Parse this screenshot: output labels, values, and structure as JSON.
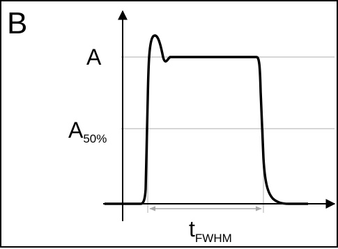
{
  "panel": {
    "letter": "B"
  },
  "labels": {
    "amplitude": "A",
    "half_main": "A",
    "half_sub": "50%",
    "width_main": "t",
    "width_sub": "FWHM"
  },
  "colors": {
    "pulse": "#000000",
    "axes": "#000000",
    "guide": "#bdbdbd",
    "dimension": "#a8a8a8"
  }
}
